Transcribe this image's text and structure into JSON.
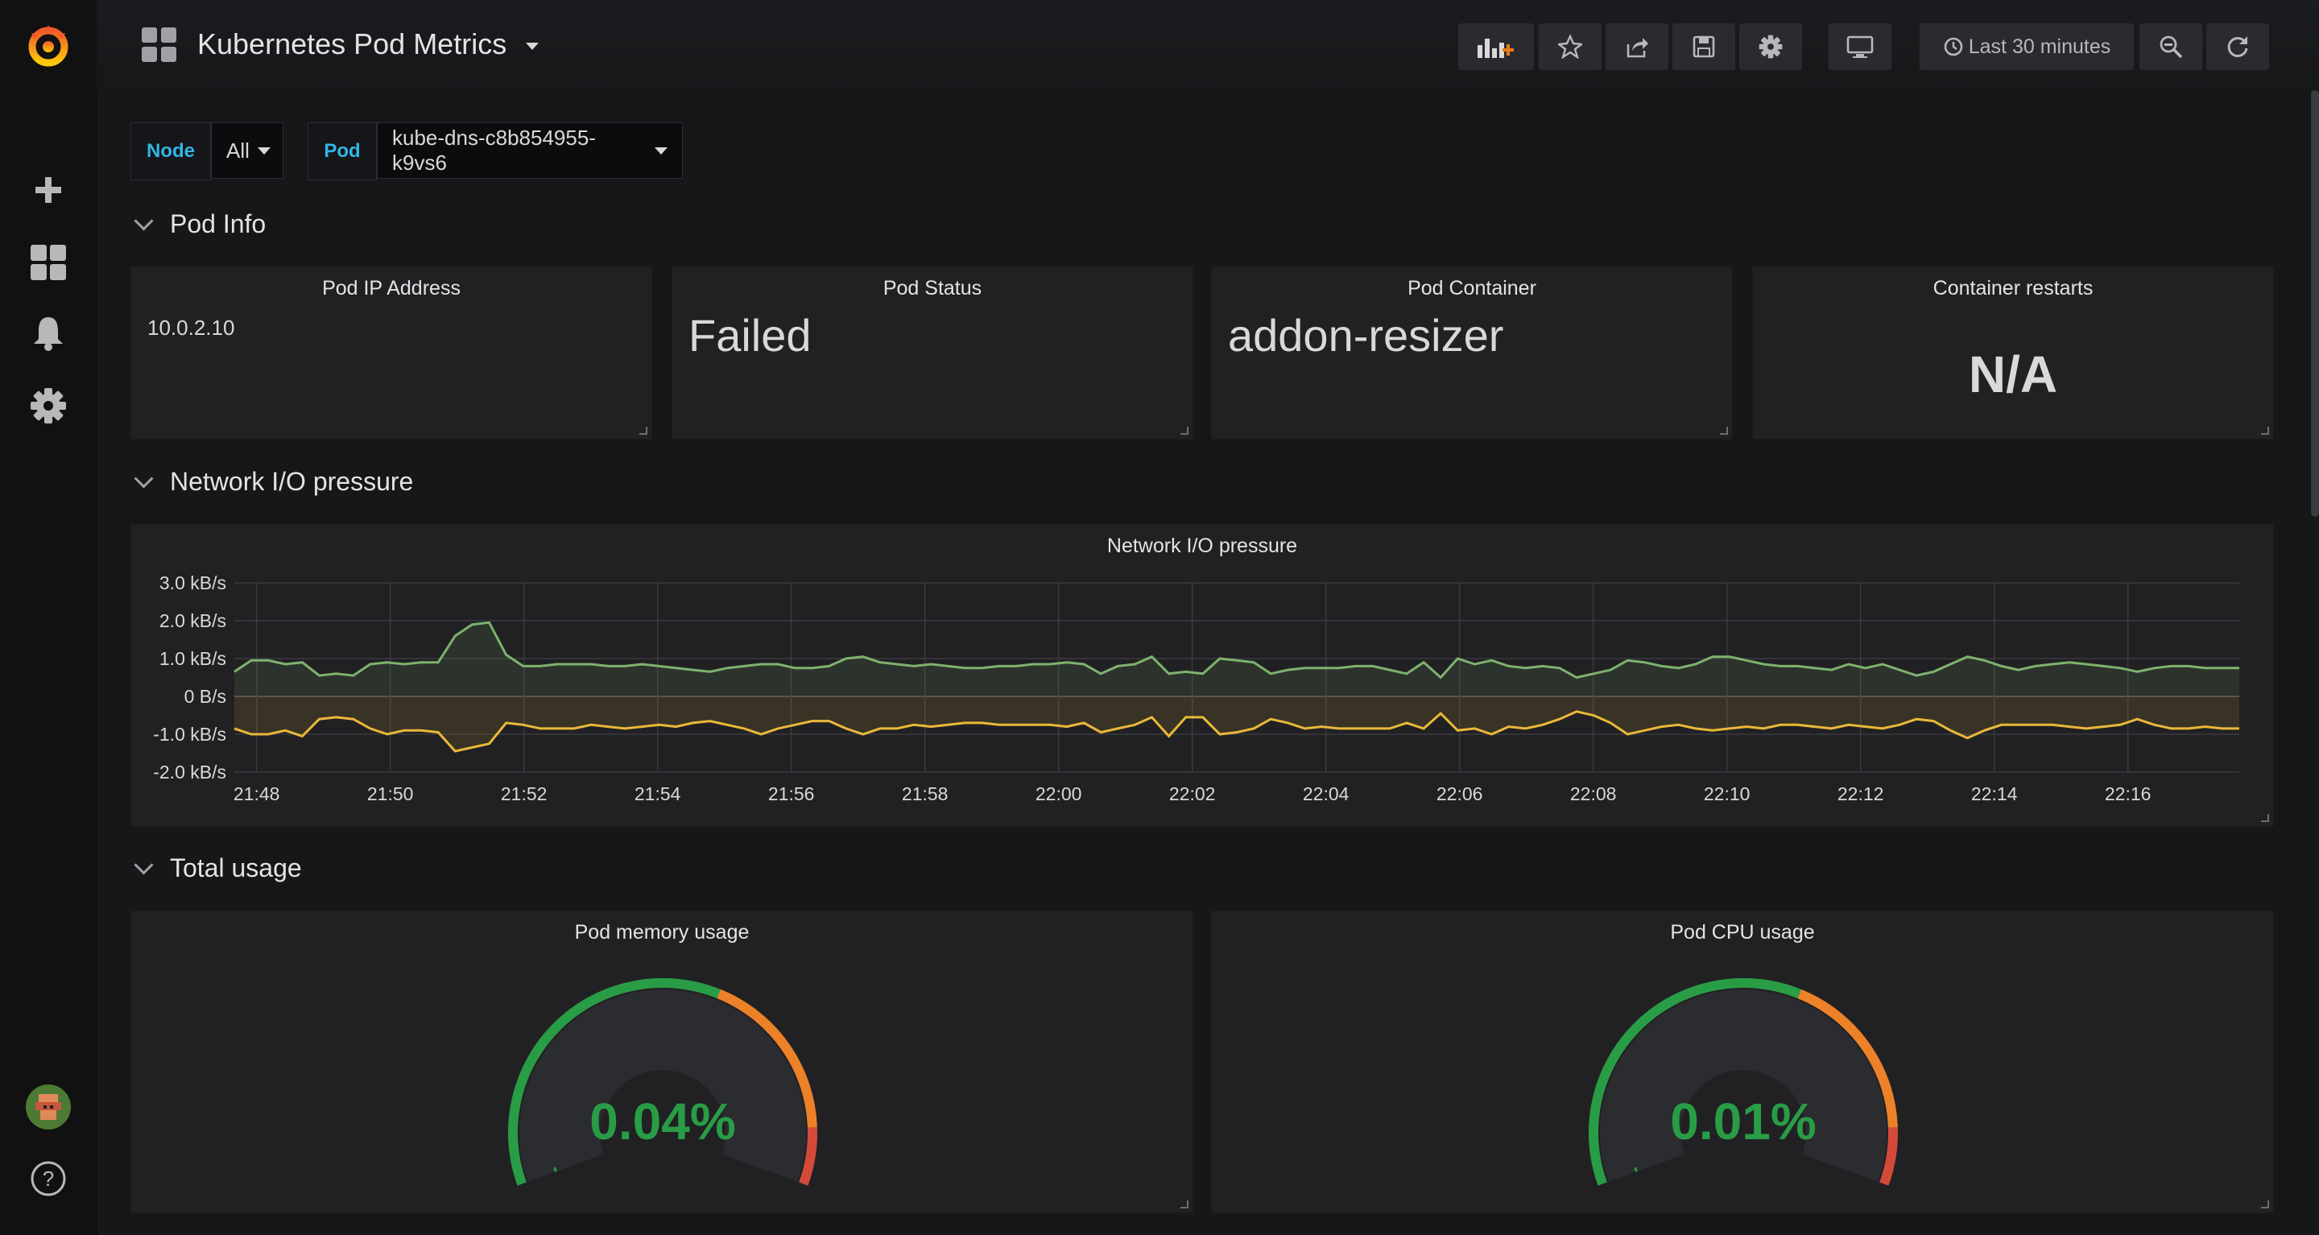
{
  "dashboard": {
    "title": "Kubernetes Pod Metrics"
  },
  "toolbar": {
    "time_range": "Last 30 minutes"
  },
  "variables": [
    {
      "label": "Node",
      "value": "All"
    },
    {
      "label": "Pod",
      "value": "kube-dns-c8b854955-k9vs6"
    }
  ],
  "rows": {
    "pod_info": "Pod Info",
    "network": "Network I/O pressure",
    "total_usage": "Total usage"
  },
  "stats": {
    "ip": {
      "title": "Pod IP Address",
      "value": "10.0.2.10"
    },
    "status": {
      "title": "Pod Status",
      "value": "Failed"
    },
    "container": {
      "title": "Pod Container",
      "value": "addon-resizer"
    },
    "restarts": {
      "title": "Container restarts",
      "value": "N/A"
    }
  },
  "gauges": {
    "memory": {
      "title": "Pod memory usage",
      "value": "0.04%",
      "fraction": 0.0004
    },
    "cpu": {
      "title": "Pod CPU usage",
      "value": "0.01%",
      "fraction": 0.0001
    }
  },
  "colors": {
    "ok": "#299c46",
    "warn": "#ed8128",
    "crit": "#d44a3a",
    "accent": "#33b5e5",
    "series_in": "#7eb26d",
    "series_out": "#eab839"
  },
  "chart_data": {
    "type": "line",
    "title": "Network I/O pressure",
    "ylim": [
      -2.0,
      3.0
    ],
    "yticks": [
      "3.0 kB/s",
      "2.0 kB/s",
      "1.0 kB/s",
      "0 B/s",
      "-1.0 kB/s",
      "-2.0 kB/s"
    ],
    "xticks": [
      "21:48",
      "21:50",
      "21:52",
      "21:54",
      "21:56",
      "21:58",
      "22:00",
      "22:02",
      "22:04",
      "22:06",
      "22:08",
      "22:10",
      "22:12",
      "22:14",
      "22:16"
    ],
    "x_start": "21:47:40",
    "x_end": "22:17:40",
    "grid": true,
    "series": [
      {
        "values": [
          0.65,
          0.95,
          0.95,
          0.85,
          0.9,
          0.55,
          0.6,
          0.55,
          0.85,
          0.9,
          0.85,
          0.9,
          0.9,
          1.6,
          1.9,
          1.95,
          1.1,
          0.8,
          0.8,
          0.85,
          0.85,
          0.85,
          0.8,
          0.8,
          0.85,
          0.8,
          0.75,
          0.7,
          0.65,
          0.75,
          0.8,
          0.85,
          0.85,
          0.75,
          0.75,
          0.8,
          1.0,
          1.05,
          0.9,
          0.85,
          0.8,
          0.85,
          0.8,
          0.75,
          0.75,
          0.8,
          0.8,
          0.85,
          0.85,
          0.9,
          0.85,
          0.6,
          0.8,
          0.85,
          1.05,
          0.6,
          0.65,
          0.6,
          1.0,
          0.95,
          0.9,
          0.6,
          0.7,
          0.75,
          0.75,
          0.75,
          0.8,
          0.8,
          0.7,
          0.6,
          0.9,
          0.5,
          1.0,
          0.85,
          0.95,
          0.8,
          0.75,
          0.8,
          0.75,
          0.5,
          0.6,
          0.7,
          0.95,
          0.9,
          0.8,
          0.75,
          0.85,
          1.05,
          1.05,
          0.95,
          0.85,
          0.8,
          0.8,
          0.75,
          0.7,
          0.85,
          0.75,
          0.85,
          0.7,
          0.55,
          0.65,
          0.85,
          1.05,
          0.95,
          0.8,
          0.7,
          0.8,
          0.85,
          0.9,
          0.85,
          0.8,
          0.75,
          0.65,
          0.75,
          0.8,
          0.8,
          0.75,
          0.75,
          0.75
        ]
      },
      {
        "values": [
          -0.85,
          -1.0,
          -1.0,
          -0.9,
          -1.05,
          -0.6,
          -0.55,
          -0.6,
          -0.85,
          -1.0,
          -0.9,
          -0.9,
          -0.95,
          -1.45,
          -1.35,
          -1.25,
          -0.7,
          -0.75,
          -0.85,
          -0.85,
          -0.85,
          -0.75,
          -0.8,
          -0.85,
          -0.8,
          -0.75,
          -0.8,
          -0.7,
          -0.65,
          -0.75,
          -0.85,
          -1.0,
          -0.85,
          -0.75,
          -0.65,
          -0.65,
          -0.85,
          -1.0,
          -0.85,
          -0.85,
          -0.75,
          -0.8,
          -0.75,
          -0.7,
          -0.7,
          -0.75,
          -0.75,
          -0.75,
          -0.75,
          -0.8,
          -0.7,
          -0.95,
          -0.85,
          -0.75,
          -0.55,
          -1.05,
          -0.55,
          -0.55,
          -1.0,
          -0.95,
          -0.85,
          -0.6,
          -0.7,
          -0.85,
          -0.8,
          -0.85,
          -0.85,
          -0.85,
          -0.85,
          -0.7,
          -0.85,
          -0.45,
          -0.9,
          -0.85,
          -1.0,
          -0.8,
          -0.85,
          -0.75,
          -0.6,
          -0.4,
          -0.5,
          -0.7,
          -1.0,
          -0.9,
          -0.8,
          -0.75,
          -0.85,
          -0.9,
          -0.85,
          -0.8,
          -0.85,
          -0.75,
          -0.75,
          -0.8,
          -0.85,
          -0.75,
          -0.8,
          -0.85,
          -0.75,
          -0.6,
          -0.65,
          -0.9,
          -1.1,
          -0.9,
          -0.75,
          -0.75,
          -0.75,
          -0.75,
          -0.8,
          -0.85,
          -0.8,
          -0.75,
          -0.6,
          -0.75,
          -0.85,
          -0.85,
          -0.8,
          -0.85,
          -0.85
        ]
      }
    ]
  }
}
